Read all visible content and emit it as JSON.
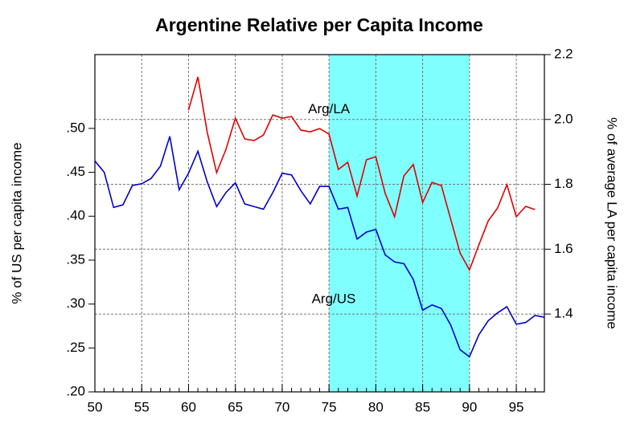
{
  "chart_data": {
    "type": "line",
    "title": "Argentine Relative per Capita Income",
    "y_label": "% of US per capita income",
    "y2_label": "% of average LA per capita income",
    "x": [
      50,
      51,
      52,
      53,
      54,
      55,
      56,
      57,
      58,
      59,
      60,
      61,
      62,
      63,
      64,
      65,
      66,
      67,
      68,
      69,
      70,
      71,
      72,
      73,
      74,
      75,
      76,
      77,
      78,
      79,
      80,
      81,
      82,
      83,
      84,
      85,
      86,
      87,
      88,
      89,
      90,
      91,
      92,
      93,
      94,
      95,
      96,
      97,
      98
    ],
    "series": [
      {
        "name": "Arg/US",
        "color": "#0000cc",
        "values": [
          0.463,
          0.45,
          0.41,
          0.413,
          0.435,
          0.437,
          0.443,
          0.457,
          0.491,
          0.43,
          0.449,
          0.474,
          0.439,
          0.411,
          0.427,
          0.438,
          0.414,
          0.411,
          0.408,
          0.427,
          0.449,
          0.447,
          0.429,
          0.414,
          0.434,
          0.434,
          0.408,
          0.41,
          0.374,
          0.382,
          0.385,
          0.356,
          0.348,
          0.346,
          0.328,
          0.293,
          0.299,
          0.295,
          0.276,
          0.248,
          0.24,
          0.265,
          0.281,
          0.29,
          0.297,
          0.277,
          0.279,
          0.287,
          0.285
        ]
      },
      {
        "name": "Arg/LA",
        "color": "#e00000",
        "axis": "y2",
        "values": [
          null,
          null,
          null,
          null,
          null,
          null,
          null,
          null,
          null,
          null,
          2.029,
          2.131,
          1.96,
          1.836,
          1.908,
          2.004,
          1.94,
          1.935,
          1.952,
          2.014,
          2.004,
          2.009,
          1.967,
          1.962,
          1.972,
          1.955,
          1.846,
          1.868,
          1.764,
          1.876,
          1.885,
          1.772,
          1.7,
          1.826,
          1.861,
          1.744,
          1.806,
          1.796,
          1.692,
          1.588,
          1.536,
          1.613,
          1.687,
          1.727,
          1.799,
          1.7,
          1.732,
          1.722,
          null
        ]
      }
    ],
    "shade": [
      75,
      90
    ],
    "shade_color": "#80ffff",
    "xlim": [
      50,
      98
    ],
    "xticks": [
      50,
      55,
      60,
      65,
      70,
      75,
      80,
      85,
      90,
      95
    ],
    "ylim": [
      0.2,
      0.584
    ],
    "yticks": [
      {
        "value": 0.2,
        "label": ".20"
      },
      {
        "value": 0.25,
        "label": ".25"
      },
      {
        "value": 0.3,
        "label": ".30"
      },
      {
        "value": 0.35,
        "label": ".35"
      },
      {
        "value": 0.4,
        "label": ".40"
      },
      {
        "value": 0.45,
        "label": ".45"
      },
      {
        "value": 0.5,
        "label": ".50"
      }
    ],
    "y2lim": [
      1.16,
      2.2
    ],
    "y2ticks": [
      1.4,
      1.6,
      1.8,
      {
        "value": 2,
        "label": "2.0"
      },
      2.2
    ],
    "grid": true,
    "annotations": [
      {
        "text": "Arg/LA",
        "x": 75,
        "y": 2.03,
        "axis": "y2"
      },
      {
        "text": "Arg/US",
        "x": 75.5,
        "y": 0.305
      }
    ]
  }
}
